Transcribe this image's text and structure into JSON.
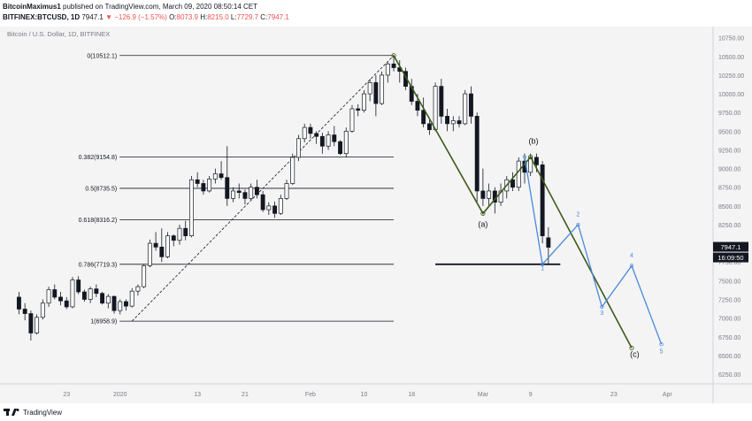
{
  "header": {
    "author": "BitcoinMaximus1",
    "published": "published on TradingView.com, March 09, 2020 08:50:14 CET",
    "symbol": "BITFINEX:BTCUSD, 1D",
    "last": "7947.1",
    "change": "−126.9 (−1.57%)",
    "ohlc": {
      "o_label": "O:",
      "o": "8073.9",
      "h_label": "H:",
      "h": "8215.0",
      "l_label": "L:",
      "l": "7729.7",
      "c_label": "C:",
      "c": "7947.1"
    }
  },
  "footer": {
    "brand": "TradingView"
  },
  "colors": {
    "up": "#ffffff",
    "down": "#131722",
    "green": "#3d5a1a",
    "blue": "#4a89dc",
    "fib": "#131722",
    "axis_text": "#787b86",
    "price_bg": "#131722"
  },
  "chart_data": {
    "type": "candlestick",
    "title": "Bitcoin / U.S. Dollar, 1D, BITFINEX",
    "ylim": [
      6120,
      10900
    ],
    "xlim": [
      -2,
      103
    ],
    "y_ticks": [
      "10750.00",
      "10500.00",
      "10250.00",
      "10000.00",
      "9750.00",
      "9500.00",
      "9250.00",
      "9000.00",
      "8750.00",
      "8500.00",
      "8250.00",
      "7750.00",
      "7500.00",
      "7250.00",
      "7000.00",
      "6750.00",
      "6500.00",
      "6250.00"
    ],
    "y_tick_values": [
      10750,
      10500,
      10250,
      10000,
      9750,
      9500,
      9250,
      9000,
      8750,
      8500,
      8250,
      7750,
      7500,
      7250,
      7000,
      6750,
      6500,
      6250
    ],
    "x_ticks": [
      {
        "label": "23",
        "i": 8
      },
      {
        "label": "2020",
        "i": 17
      },
      {
        "label": "13",
        "i": 30
      },
      {
        "label": "21",
        "i": 38
      },
      {
        "label": "Feb",
        "i": 49
      },
      {
        "label": "10",
        "i": 58
      },
      {
        "label": "18",
        "i": 66
      },
      {
        "label": "Mar",
        "i": 78
      },
      {
        "label": "9",
        "i": 86
      },
      {
        "label": "23",
        "i": 100
      },
      {
        "label": "Apr",
        "i": 109
      }
    ],
    "current_price": "7947.1",
    "current_price_value": 7947.1,
    "countdown": "16:09:50",
    "candles": [
      [
        7280,
        7350,
        7050,
        7120
      ],
      [
        7120,
        7200,
        6970,
        7060
      ],
      [
        7060,
        7100,
        6700,
        6800
      ],
      [
        6800,
        7050,
        6780,
        7010
      ],
      [
        7010,
        7250,
        6980,
        7200
      ],
      [
        7200,
        7420,
        7150,
        7380
      ],
      [
        7380,
        7450,
        7250,
        7280
      ],
      [
        7280,
        7350,
        7170,
        7230
      ],
      [
        7230,
        7280,
        7120,
        7150
      ],
      [
        7150,
        7550,
        7130,
        7510
      ],
      [
        7510,
        7560,
        7320,
        7350
      ],
      [
        7350,
        7380,
        7220,
        7250
      ],
      [
        7250,
        7420,
        7200,
        7390
      ],
      [
        7390,
        7450,
        7280,
        7330
      ],
      [
        7330,
        7350,
        7180,
        7200
      ],
      [
        7200,
        7320,
        7130,
        7290
      ],
      [
        7290,
        7300,
        7060,
        7100
      ],
      [
        7100,
        7250,
        7050,
        7220
      ],
      [
        7220,
        7250,
        7100,
        7160
      ],
      [
        7160,
        7400,
        7140,
        7360
      ],
      [
        7360,
        7450,
        7300,
        7420
      ],
      [
        7420,
        7720,
        7400,
        7700
      ],
      [
        7700,
        8050,
        7680,
        8000
      ],
      [
        8000,
        8150,
        7900,
        7950
      ],
      [
        7950,
        8200,
        7750,
        7820
      ],
      [
        7820,
        8150,
        7800,
        8100
      ],
      [
        8100,
        8120,
        7960,
        8040
      ],
      [
        8040,
        8250,
        7980,
        8200
      ],
      [
        8200,
        8300,
        8040,
        8100
      ],
      [
        8100,
        8900,
        8080,
        8850
      ],
      [
        8850,
        8950,
        8750,
        8800
      ],
      [
        8800,
        8850,
        8650,
        8700
      ],
      [
        8700,
        8900,
        8680,
        8860
      ],
      [
        8860,
        9000,
        8800,
        8930
      ],
      [
        8930,
        9100,
        8850,
        8880
      ],
      [
        8880,
        9300,
        8500,
        8600
      ],
      [
        8600,
        8750,
        8550,
        8700
      ],
      [
        8700,
        8800,
        8600,
        8680
      ],
      [
        8680,
        8720,
        8520,
        8600
      ],
      [
        8600,
        8800,
        8580,
        8750
      ],
      [
        8750,
        8850,
        8600,
        8650
      ],
      [
        8650,
        8700,
        8420,
        8450
      ],
      [
        8450,
        8550,
        8380,
        8500
      ],
      [
        8500,
        8560,
        8340,
        8400
      ],
      [
        8400,
        8650,
        8380,
        8600
      ],
      [
        8600,
        8850,
        8580,
        8800
      ],
      [
        8800,
        9200,
        8780,
        9150
      ],
      [
        9150,
        9450,
        9100,
        9400
      ],
      [
        9400,
        9600,
        9350,
        9550
      ],
      [
        9550,
        9600,
        9400,
        9470
      ],
      [
        9470,
        9500,
        9330,
        9430
      ],
      [
        9430,
        9480,
        9200,
        9300
      ],
      [
        9300,
        9500,
        9250,
        9450
      ],
      [
        9450,
        9570,
        9300,
        9360
      ],
      [
        9360,
        9380,
        9180,
        9200
      ],
      [
        9200,
        9550,
        9150,
        9500
      ],
      [
        9500,
        9850,
        9480,
        9800
      ],
      [
        9800,
        9860,
        9700,
        9780
      ],
      [
        9780,
        10050,
        9750,
        10000
      ],
      [
        10000,
        10200,
        9900,
        10150
      ],
      [
        10150,
        10250,
        9700,
        9870
      ],
      [
        9870,
        10300,
        9850,
        10250
      ],
      [
        10250,
        10420,
        10150,
        10400
      ],
      [
        10400,
        10512,
        10300,
        10350
      ],
      [
        10350,
        10450,
        10150,
        10300
      ],
      [
        10300,
        10350,
        10050,
        10100
      ],
      [
        10100,
        10200,
        9850,
        9900
      ],
      [
        9900,
        10000,
        9700,
        9780
      ],
      [
        9780,
        9950,
        9550,
        9600
      ],
      [
        9600,
        9650,
        9450,
        9520
      ],
      [
        9520,
        10150,
        9500,
        10100
      ],
      [
        10100,
        10200,
        9600,
        9700
      ],
      [
        9700,
        9800,
        9500,
        9600
      ],
      [
        9600,
        9700,
        9500,
        9640
      ],
      [
        9640,
        9700,
        9550,
        9600
      ],
      [
        9600,
        10050,
        9580,
        10000
      ],
      [
        10000,
        10100,
        9600,
        9700
      ],
      [
        9700,
        9750,
        8550,
        8700
      ],
      [
        8700,
        9000,
        8500,
        8600
      ],
      [
        8600,
        8800,
        8500,
        8700
      ],
      [
        8700,
        8750,
        8400,
        8550
      ],
      [
        8550,
        8800,
        8500,
        8700
      ],
      [
        8700,
        8900,
        8600,
        8850
      ],
      [
        8850,
        8950,
        8700,
        8750
      ],
      [
        8750,
        9150,
        8700,
        9100
      ],
      [
        9100,
        9200,
        8800,
        8950
      ],
      [
        8950,
        9200,
        8900,
        9150
      ],
      [
        9150,
        9200,
        8950,
        9050
      ],
      [
        9050,
        9100,
        8000,
        8100
      ],
      [
        8073.9,
        8215,
        7729.7,
        7947.1
      ]
    ],
    "fib_levels": [
      {
        "label": "0(10512.1)",
        "value": 10512.1
      },
      {
        "label": "0.382(9154.8)",
        "value": 9154.8
      },
      {
        "label": "0.5(8735.5)",
        "value": 8735.5
      },
      {
        "label": "0.618(8316.2)",
        "value": 8316.2
      },
      {
        "label": "0.786(7719.3)",
        "value": 7719.3
      },
      {
        "label": "1(6958.9)",
        "value": 6958.9
      }
    ],
    "support_line": {
      "value": 7719.3,
      "i_start": 70,
      "i_end": 91
    },
    "trend_line": {
      "points": [
        [
          19,
          6958.9
        ],
        [
          63,
          10512.1
        ]
      ]
    },
    "green_wave": [
      [
        63,
        10512.1
      ],
      [
        78,
        8400
      ],
      [
        86,
        9154.8
      ],
      [
        103,
        6600
      ]
    ],
    "green_labels": [
      {
        "text": "(a)",
        "i": 78,
        "v": 8220
      },
      {
        "text": "(b)",
        "i": 86.5,
        "v": 9330
      },
      {
        "text": "(c)",
        "i": 103.5,
        "v": 6480
      }
    ],
    "blue_wave": [
      [
        85,
        9154.8
      ],
      [
        88,
        7719.3
      ],
      [
        94,
        8250
      ],
      [
        98,
        7150
      ],
      [
        103,
        7700
      ],
      [
        108,
        6650
      ]
    ],
    "blue_labels": [
      {
        "text": "1",
        "i": 88,
        "v": 7640
      },
      {
        "text": "2",
        "i": 94,
        "v": 8360
      },
      {
        "text": "3",
        "i": 98,
        "v": 7040
      },
      {
        "text": "4",
        "i": 103,
        "v": 7810
      },
      {
        "text": "5",
        "i": 108,
        "v": 6530
      }
    ]
  }
}
